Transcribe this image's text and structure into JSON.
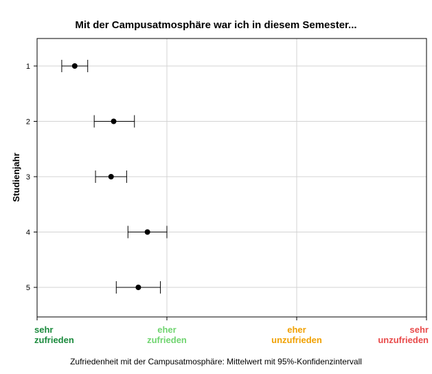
{
  "chart_data": {
    "type": "scatter",
    "title": "Mit der Campusatmosphäre war ich in diesem Semester...",
    "xlabel": "Zufriedenheit mit der Campusatmosphäre: Mittelwert mit 95%-Konfidenzintervall",
    "ylabel": "Studienjahr",
    "xlim": [
      1,
      4
    ],
    "x_tick_values": [
      1,
      2,
      3,
      4
    ],
    "x_tick_labels": [
      {
        "lines": [
          "sehr",
          "zufrieden"
        ],
        "color": "#1a8a3c"
      },
      {
        "lines": [
          "eher",
          "zufrieden"
        ],
        "color": "#6fd46f"
      },
      {
        "lines": [
          "eher",
          "unzufrieden"
        ],
        "color": "#f0a000"
      },
      {
        "lines": [
          "sehr",
          "unzufrieden"
        ],
        "color": "#e84a4a"
      }
    ],
    "categories": [
      "1",
      "2",
      "3",
      "4",
      "5"
    ],
    "series": [
      {
        "points": [
          {
            "y": "1",
            "mean": 1.29,
            "ci_low": 1.19,
            "ci_high": 1.39
          },
          {
            "y": "2",
            "mean": 1.59,
            "ci_low": 1.44,
            "ci_high": 1.75
          },
          {
            "y": "3",
            "mean": 1.57,
            "ci_low": 1.45,
            "ci_high": 1.69
          },
          {
            "y": "4",
            "mean": 1.85,
            "ci_low": 1.7,
            "ci_high": 2.0
          },
          {
            "y": "5",
            "mean": 1.78,
            "ci_low": 1.61,
            "ci_high": 1.95
          }
        ]
      }
    ],
    "grid": true,
    "grid_color": "#d3d3d3",
    "point_color": "#000000"
  }
}
